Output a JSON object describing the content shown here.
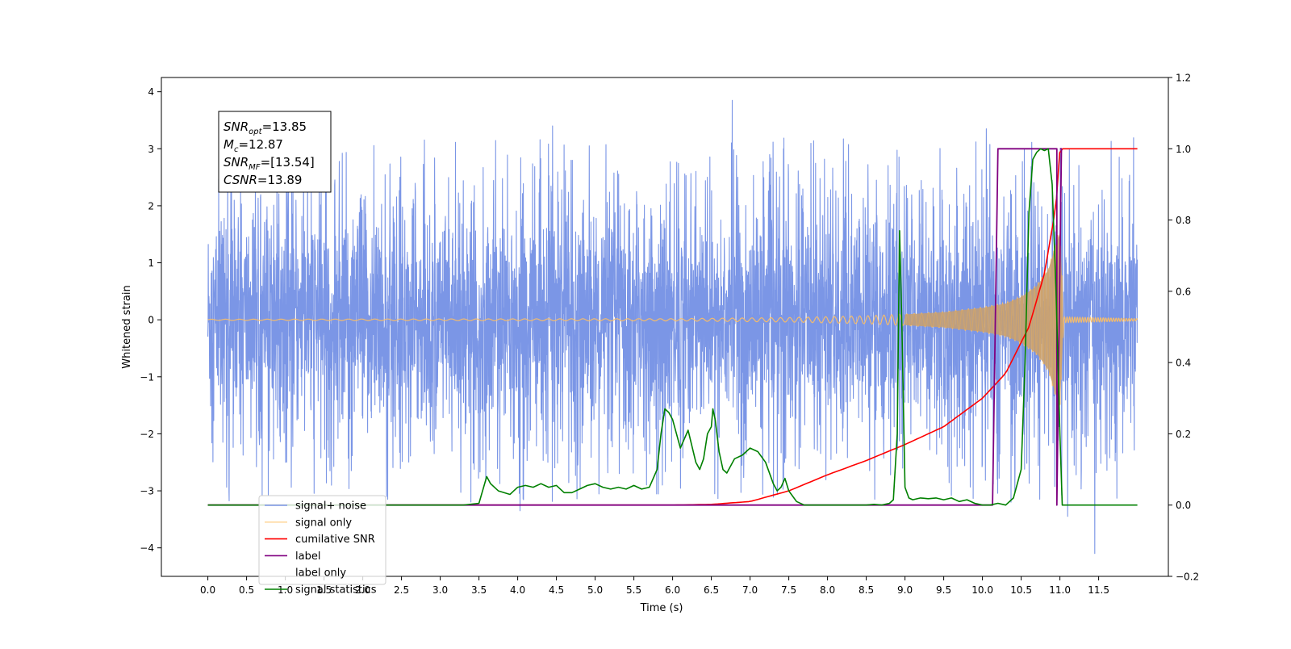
{
  "chart_data": {
    "type": "line",
    "xlabel": "Time (s)",
    "ylabel": "Whitened strain",
    "ylabel_right": "",
    "xlim": [
      -0.6,
      12.4
    ],
    "ylim": [
      -4.5,
      4.25
    ],
    "ylim_right": [
      -0.2,
      1.2
    ],
    "x_ticks": [
      0.0,
      0.5,
      1.0,
      1.5,
      2.0,
      2.5,
      3.0,
      3.5,
      4.0,
      4.5,
      5.0,
      5.5,
      6.0,
      6.5,
      7.0,
      7.5,
      8.0,
      8.5,
      9.0,
      9.5,
      10.0,
      10.5,
      11.0,
      11.5
    ],
    "x_tick_labels": [
      "0.0",
      "0.5",
      "1.0",
      "1.5",
      "2.0",
      "2.5",
      "3.0",
      "3.5",
      "4.0",
      "4.5",
      "5.0",
      "5.5",
      "6.0",
      "6.5",
      "7.0",
      "7.5",
      "8.0",
      "8.5",
      "9.0",
      "9.5",
      "10.0",
      "10.5",
      "11.0",
      "11.5"
    ],
    "y_ticks": [
      -4,
      -3,
      -2,
      -1,
      0,
      1,
      2,
      3,
      4
    ],
    "y_tick_labels": [
      "−4",
      "−3",
      "−2",
      "−1",
      "0",
      "1",
      "2",
      "3",
      "4"
    ],
    "y_ticks_right": [
      -0.2,
      0.0,
      0.2,
      0.4,
      0.6,
      0.8,
      1.0,
      1.2
    ],
    "y_tick_labels_right": [
      "−0.2",
      "0.0",
      "0.2",
      "0.4",
      "0.6",
      "0.8",
      "1.0",
      "1.2"
    ],
    "grid": false,
    "legend_position": "lower-left",
    "annotation_box": {
      "lines": [
        {
          "sym": "SNR",
          "sub": "opt",
          "value": "=13.85"
        },
        {
          "sym": "M",
          "sub": "c",
          "value": "=12.87"
        },
        {
          "sym": "SNR",
          "sub": "MF",
          "value": "=[13.54]"
        },
        {
          "sym": "CSNR",
          "sub": "",
          "value": "=13.89"
        }
      ]
    },
    "series": [
      {
        "name": "signal+ noise",
        "axis": "left",
        "color": "#7B96E6",
        "description": "noisy whitened strain, roughly ±2.5 amplitude",
        "x_range": [
          0.0,
          12.0
        ],
        "peaks": [
          {
            "x": 6.77,
            "y": 3.85
          },
          {
            "x": 11.45,
            "y": -4.1
          },
          {
            "x": 4.03,
            "y": -3.35
          },
          {
            "x": 11.1,
            "y": -3.45
          },
          {
            "x": 4.45,
            "y": 3.4
          },
          {
            "x": 10.05,
            "y": 3.35
          }
        ]
      },
      {
        "name": "signal only",
        "axis": "left",
        "color": "#FFBF60",
        "description": "chirp signal growing in amplitude, merger near 11.0 s",
        "x": [
          0.0,
          6.0,
          7.5,
          8.5,
          9.0,
          9.5,
          10.0,
          10.3,
          10.5,
          10.7,
          10.85,
          10.95,
          11.0,
          11.05,
          12.0
        ],
        "envelope": [
          0.01,
          0.02,
          0.04,
          0.07,
          0.1,
          0.14,
          0.22,
          0.3,
          0.42,
          0.62,
          0.92,
          1.4,
          1.6,
          0.05,
          0.02
        ]
      },
      {
        "name": "cumilative SNR",
        "axis": "right",
        "color": "#FF0000",
        "x": [
          0.0,
          6.0,
          6.5,
          7.0,
          7.5,
          8.0,
          8.5,
          9.0,
          9.5,
          10.0,
          10.3,
          10.6,
          10.8,
          10.95,
          11.0,
          11.05,
          12.0
        ],
        "y": [
          0.0,
          0.0,
          0.002,
          0.01,
          0.04,
          0.085,
          0.125,
          0.17,
          0.22,
          0.3,
          0.37,
          0.5,
          0.65,
          0.84,
          1.0,
          1.0,
          1.0
        ]
      },
      {
        "name": "label",
        "axis": "right",
        "color": "#800080",
        "x": [
          0.0,
          10.13,
          10.2,
          10.96,
          10.96,
          11.02,
          11.0
        ],
        "y": [
          0.0,
          0.0,
          1.0,
          1.0,
          0.0,
          1.0,
          1.0
        ]
      },
      {
        "name": "label only",
        "axis": "right",
        "color": "#800080",
        "hidden": true
      },
      {
        "name": "signal statistics",
        "axis": "right",
        "color": "#008000",
        "x": [
          0.0,
          3.3,
          3.5,
          3.6,
          3.65,
          3.75,
          3.9,
          4.0,
          4.1,
          4.2,
          4.3,
          4.4,
          4.5,
          4.6,
          4.7,
          4.8,
          4.9,
          5.0,
          5.1,
          5.2,
          5.3,
          5.4,
          5.5,
          5.6,
          5.7,
          5.8,
          5.85,
          5.9,
          5.95,
          6.0,
          6.1,
          6.2,
          6.3,
          6.35,
          6.4,
          6.45,
          6.5,
          6.52,
          6.55,
          6.6,
          6.65,
          6.7,
          6.8,
          6.9,
          7.0,
          7.1,
          7.2,
          7.3,
          7.35,
          7.4,
          7.45,
          7.5,
          7.6,
          7.7,
          8.0,
          8.5,
          8.6,
          8.7,
          8.8,
          8.85,
          8.9,
          8.93,
          8.96,
          9.0,
          9.05,
          9.1,
          9.2,
          9.3,
          9.4,
          9.5,
          9.6,
          9.7,
          9.8,
          9.9,
          10.0,
          10.1,
          10.2,
          10.3,
          10.4,
          10.5,
          10.55,
          10.6,
          10.65,
          10.7,
          10.75,
          10.8,
          10.85,
          10.9,
          10.95,
          11.0,
          11.03,
          11.06,
          11.1,
          12.0
        ],
        "y": [
          0.0,
          0.0,
          0.005,
          0.08,
          0.06,
          0.04,
          0.03,
          0.05,
          0.055,
          0.05,
          0.06,
          0.05,
          0.055,
          0.035,
          0.035,
          0.045,
          0.055,
          0.06,
          0.05,
          0.045,
          0.05,
          0.045,
          0.055,
          0.045,
          0.05,
          0.1,
          0.2,
          0.27,
          0.26,
          0.24,
          0.16,
          0.21,
          0.12,
          0.1,
          0.13,
          0.2,
          0.22,
          0.27,
          0.24,
          0.15,
          0.1,
          0.09,
          0.13,
          0.14,
          0.16,
          0.15,
          0.12,
          0.06,
          0.04,
          0.05,
          0.075,
          0.04,
          0.01,
          0.0,
          0.0,
          0.0,
          0.002,
          0.0,
          0.005,
          0.015,
          0.2,
          0.77,
          0.5,
          0.05,
          0.02,
          0.015,
          0.02,
          0.018,
          0.02,
          0.015,
          0.02,
          0.01,
          0.015,
          0.005,
          0.0,
          0.0,
          0.005,
          0.0,
          0.02,
          0.1,
          0.4,
          0.82,
          0.97,
          0.99,
          1.0,
          0.995,
          1.0,
          0.9,
          0.6,
          0.2,
          0.0,
          0.0,
          0.0,
          0.0
        ]
      }
    ]
  }
}
